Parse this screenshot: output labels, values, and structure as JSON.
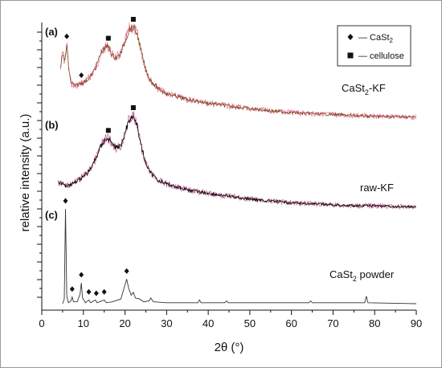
{
  "chart_data": {
    "type": "line",
    "xlabel": "2θ (°)",
    "ylabel": "relative intensity (a.u.)",
    "xlim": [
      0,
      90
    ],
    "xticks": [
      0,
      10,
      20,
      30,
      40,
      50,
      60,
      70,
      80,
      90
    ],
    "grid": false,
    "legend": {
      "position": "top-right",
      "entries": [
        {
          "marker": "diamond",
          "label": "— CaSt",
          "sub": "2"
        },
        {
          "marker": "square",
          "label": "— cellulose",
          "sub": ""
        }
      ]
    },
    "series": [
      {
        "panel": "(a)",
        "name": "CaSt",
        "name_sub": "2",
        "name_suffix": "-KF",
        "color": "#7a4a1a",
        "noise_color": "#e0407a",
        "points": [
          [
            4.5,
            0.55
          ],
          [
            5,
            0.75
          ],
          [
            5.5,
            0.62
          ],
          [
            6,
            0.82
          ],
          [
            6.5,
            0.55
          ],
          [
            7,
            0.42
          ],
          [
            8,
            0.38
          ],
          [
            9,
            0.4
          ],
          [
            10,
            0.42
          ],
          [
            11,
            0.45
          ],
          [
            12,
            0.5
          ],
          [
            13,
            0.58
          ],
          [
            14,
            0.7
          ],
          [
            15,
            0.78
          ],
          [
            16,
            0.8
          ],
          [
            17,
            0.7
          ],
          [
            18,
            0.68
          ],
          [
            19,
            0.72
          ],
          [
            20,
            0.85
          ],
          [
            21,
            0.98
          ],
          [
            22,
            1.0
          ],
          [
            23,
            0.92
          ],
          [
            24,
            0.72
          ],
          [
            25,
            0.55
          ],
          [
            26,
            0.45
          ],
          [
            28,
            0.35
          ],
          [
            30,
            0.3
          ],
          [
            35,
            0.24
          ],
          [
            40,
            0.2
          ],
          [
            45,
            0.17
          ],
          [
            50,
            0.14
          ],
          [
            55,
            0.12
          ],
          [
            60,
            0.1
          ],
          [
            65,
            0.09
          ],
          [
            70,
            0.08
          ],
          [
            75,
            0.07
          ],
          [
            80,
            0.06
          ],
          [
            85,
            0.06
          ],
          [
            90,
            0.05
          ]
        ],
        "markers": [
          {
            "x": 6,
            "type": "diamond"
          },
          {
            "x": 9.5,
            "type": "diamond"
          },
          {
            "x": 16,
            "type": "square"
          },
          {
            "x": 22,
            "type": "square"
          }
        ]
      },
      {
        "panel": "(b)",
        "name": "raw-KF",
        "name_sub": "",
        "name_suffix": "",
        "color": "#000000",
        "noise_color": "#b03070",
        "points": [
          [
            4,
            0.3
          ],
          [
            5,
            0.28
          ],
          [
            6,
            0.26
          ],
          [
            7,
            0.28
          ],
          [
            8,
            0.3
          ],
          [
            9,
            0.33
          ],
          [
            10,
            0.36
          ],
          [
            11,
            0.4
          ],
          [
            12,
            0.46
          ],
          [
            13,
            0.55
          ],
          [
            14,
            0.66
          ],
          [
            15,
            0.74
          ],
          [
            16,
            0.76
          ],
          [
            17,
            0.7
          ],
          [
            18,
            0.66
          ],
          [
            19,
            0.68
          ],
          [
            20,
            0.82
          ],
          [
            21,
            0.96
          ],
          [
            22,
            1.0
          ],
          [
            23,
            0.88
          ],
          [
            24,
            0.66
          ],
          [
            25,
            0.5
          ],
          [
            26,
            0.4
          ],
          [
            28,
            0.32
          ],
          [
            30,
            0.28
          ],
          [
            35,
            0.22
          ],
          [
            40,
            0.18
          ],
          [
            45,
            0.15
          ],
          [
            50,
            0.12
          ],
          [
            55,
            0.1
          ],
          [
            60,
            0.08
          ],
          [
            65,
            0.07
          ],
          [
            70,
            0.06
          ],
          [
            75,
            0.05
          ],
          [
            80,
            0.05
          ],
          [
            85,
            0.04
          ],
          [
            90,
            0.04
          ]
        ],
        "markers": [
          {
            "x": 16,
            "type": "square"
          },
          {
            "x": 22,
            "type": "square"
          }
        ]
      },
      {
        "panel": "(c)",
        "name": "CaSt",
        "name_sub": "2",
        "name_suffix": " powder",
        "color": "#333333",
        "noise_color": "",
        "points": [
          [
            5,
            0.0
          ],
          [
            5.4,
            0.05
          ],
          [
            5.7,
            1.0
          ],
          [
            6.0,
            0.08
          ],
          [
            6.4,
            0.01
          ],
          [
            7.0,
            0.03
          ],
          [
            7.3,
            0.07
          ],
          [
            7.6,
            0.02
          ],
          [
            8.5,
            0.02
          ],
          [
            9.2,
            0.1
          ],
          [
            9.5,
            0.22
          ],
          [
            9.8,
            0.06
          ],
          [
            10.5,
            0.01
          ],
          [
            11.3,
            0.04
          ],
          [
            11.7,
            0.01
          ],
          [
            12.9,
            0.04
          ],
          [
            13.3,
            0.01
          ],
          [
            15.0,
            0.04
          ],
          [
            15.5,
            0.01
          ],
          [
            17.0,
            0.02
          ],
          [
            19.0,
            0.05
          ],
          [
            20.0,
            0.2
          ],
          [
            20.4,
            0.26
          ],
          [
            20.9,
            0.16
          ],
          [
            21.5,
            0.09
          ],
          [
            22.0,
            0.12
          ],
          [
            22.5,
            0.06
          ],
          [
            23.5,
            0.05
          ],
          [
            24.5,
            0.02
          ],
          [
            25.8,
            0.03
          ],
          [
            26.2,
            0.06
          ],
          [
            26.8,
            0.02
          ],
          [
            30,
            0.01
          ],
          [
            37.5,
            0.01
          ],
          [
            37.9,
            0.04
          ],
          [
            38.3,
            0.01
          ],
          [
            44.0,
            0.01
          ],
          [
            44.4,
            0.03
          ],
          [
            44.8,
            0.01
          ],
          [
            64.2,
            0.01
          ],
          [
            64.6,
            0.03
          ],
          [
            65.0,
            0.01
          ],
          [
            77.6,
            0.01
          ],
          [
            78.0,
            0.08
          ],
          [
            78.4,
            0.01
          ],
          [
            90,
            0.0
          ]
        ],
        "markers": [
          {
            "x": 5.7,
            "type": "diamond"
          },
          {
            "x": 7.3,
            "type": "diamond"
          },
          {
            "x": 9.5,
            "type": "diamond"
          },
          {
            "x": 11.3,
            "type": "diamond"
          },
          {
            "x": 13.1,
            "type": "diamond"
          },
          {
            "x": 15.0,
            "type": "diamond"
          },
          {
            "x": 20.4,
            "type": "diamond"
          }
        ]
      }
    ]
  }
}
